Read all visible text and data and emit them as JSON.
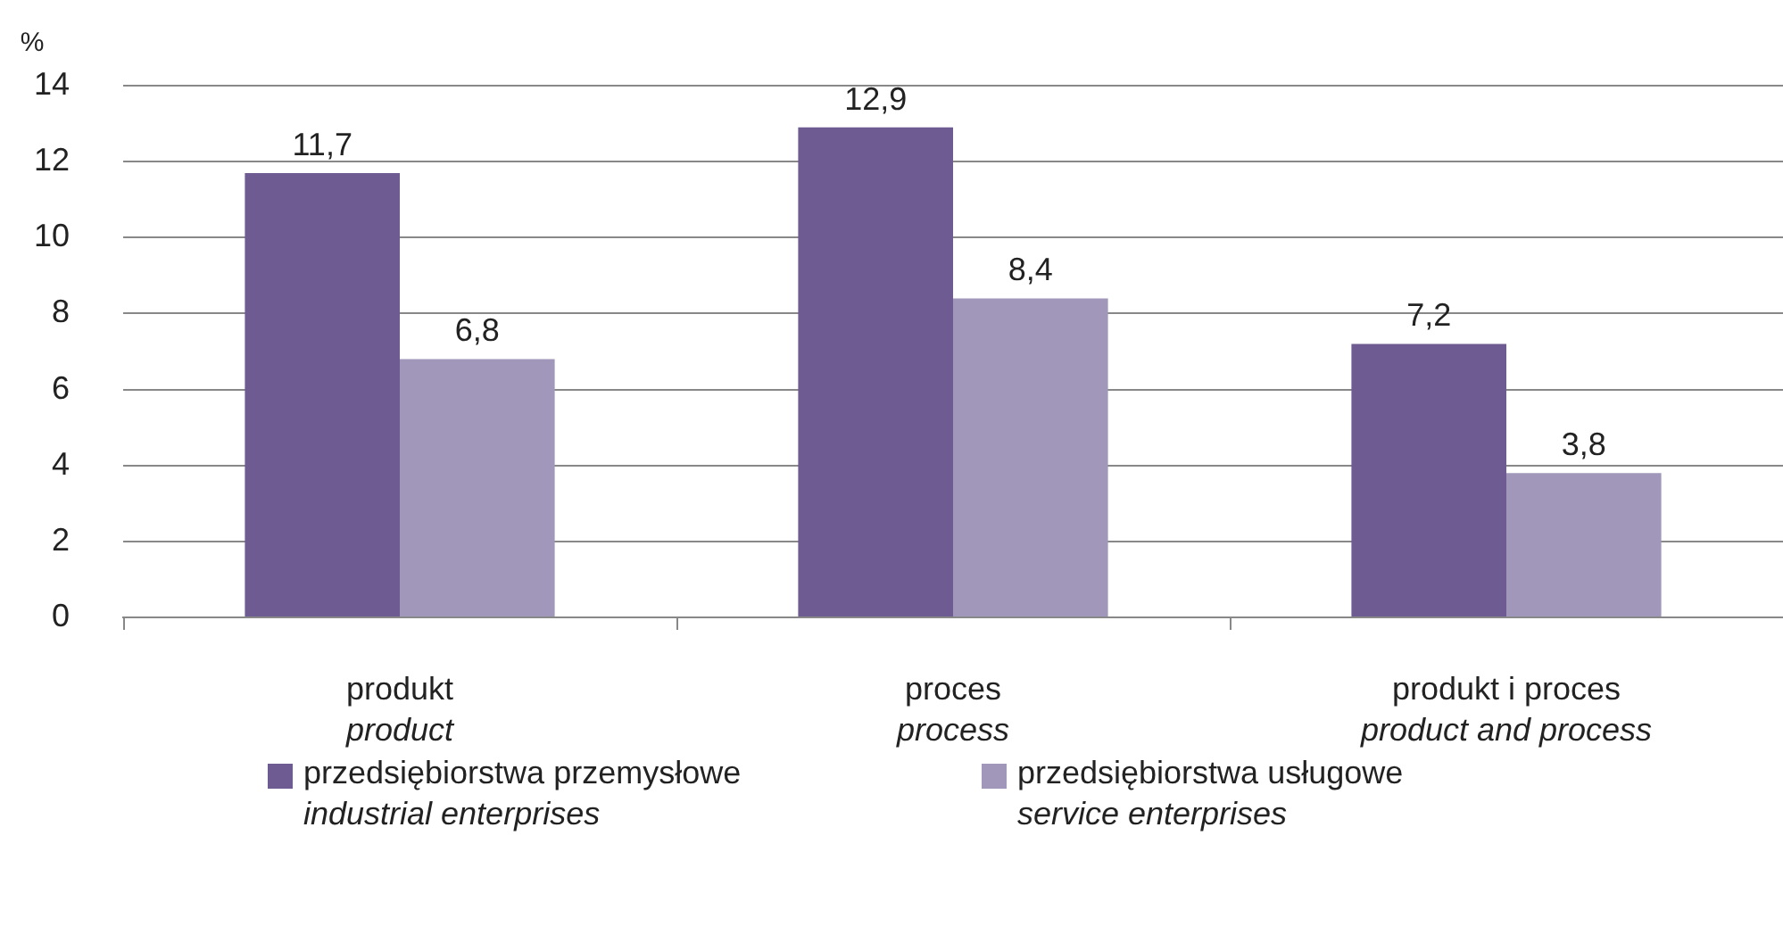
{
  "chart_data": {
    "type": "bar",
    "ylabel": "%",
    "categories": [
      "produkt\nproduct",
      "proces\nprocess",
      "produkt i proces\nproduct and process"
    ],
    "series": [
      {
        "name": "przedsiębiorstwa przemysłowe\nindustrial enterprises",
        "color": "#6e5b91",
        "values": [
          11.7,
          12.9,
          7.2
        ],
        "value_labels": [
          "11,7",
          "12,9",
          "7,2"
        ]
      },
      {
        "name": "przedsiębiorstwa usługowe\nservice enterprises",
        "color": "#a197ba",
        "values": [
          6.8,
          8.4,
          3.8
        ],
        "value_labels": [
          "6,8",
          "8,4",
          "3,8"
        ]
      }
    ],
    "ylim": [
      0,
      14
    ],
    "yticks": [
      0,
      2,
      4,
      6,
      8,
      10,
      12,
      14
    ],
    "grid": "y",
    "legend": "bottom"
  }
}
